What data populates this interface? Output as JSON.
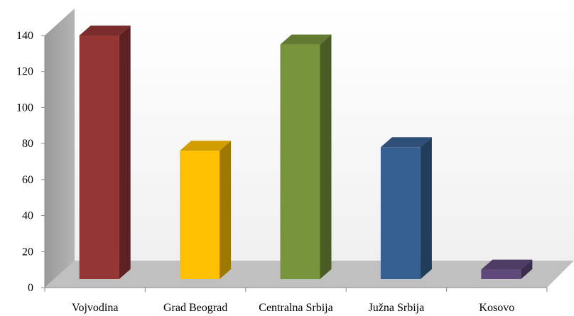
{
  "chart_data": {
    "type": "bar",
    "three_d": true,
    "categories": [
      "Vojvodina",
      "Grad Beograd",
      "Centralna Srbija",
      "Južna Srbija",
      "Kosovo"
    ],
    "values": [
      140,
      76,
      135,
      78,
      10
    ],
    "colors": [
      "#943634",
      "#FFC000",
      "#77933C",
      "#376092",
      "#5F497A"
    ],
    "title": "",
    "xlabel": "",
    "ylabel": "",
    "ylim": [
      0,
      140
    ],
    "yticks": [
      0,
      20,
      40,
      60,
      80,
      100,
      120,
      140
    ],
    "grid": false,
    "legend": "none"
  }
}
